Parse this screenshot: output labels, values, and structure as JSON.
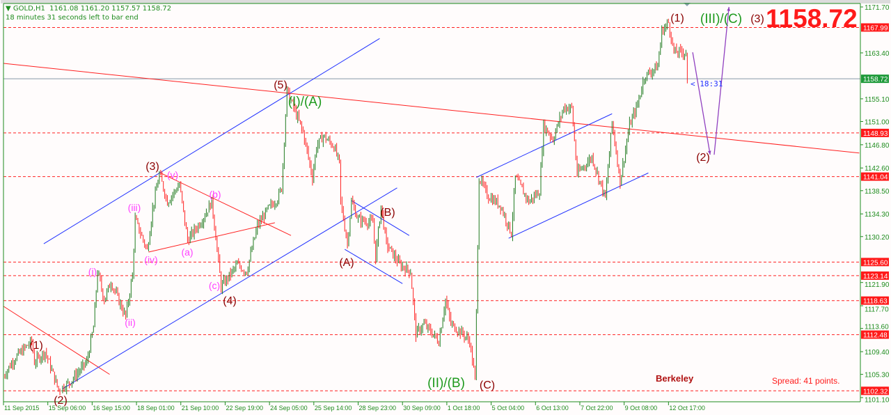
{
  "header": {
    "symbol_line": "GOLD,H1  1161.08 1161.20 1157.57 1158.72",
    "timer_line": "18 minutes 31 seconds left to bar end"
  },
  "overlay": {
    "big_price": "1158.72",
    "bar_timer": "< 18:31",
    "brand": "Berkeley",
    "spread": "Spread: 41 points."
  },
  "colors": {
    "background": "#fffcfc",
    "axis": "#1e8c1e",
    "bull_bar": "#1e7a1e",
    "bear_bar": "#ff2020",
    "level_line": "#ff2020",
    "channel_line": "#2030ff",
    "trend_line": "#ff2020",
    "projection_arrow": "#9040c0",
    "current_price_line": "#8898a8"
  },
  "wave_labels": [
    {
      "text": "(1)",
      "style": "dr"
    },
    {
      "text": "(2)",
      "style": "dr"
    },
    {
      "text": "(i)",
      "style": "mg"
    },
    {
      "text": "(ii)",
      "style": "mg"
    },
    {
      "text": "(iii)",
      "style": "mg"
    },
    {
      "text": "(iv)",
      "style": "mg"
    },
    {
      "text": "(v)",
      "style": "mg"
    },
    {
      "text": "(3)",
      "style": "dr"
    },
    {
      "text": "(a)",
      "style": "mg"
    },
    {
      "text": "(b)",
      "style": "mg"
    },
    {
      "text": "(c)",
      "style": "mg"
    },
    {
      "text": "(4)",
      "style": "dr"
    },
    {
      "text": "(5)",
      "style": "dr"
    },
    {
      "text": "(I)/(A)",
      "style": "gr"
    },
    {
      "text": "(A)",
      "style": "dr"
    },
    {
      "text": "(B)",
      "style": "dr"
    },
    {
      "text": "(II)/(B)",
      "style": "gr"
    },
    {
      "text": "(C)",
      "style": "dr"
    },
    {
      "text": "(1)",
      "style": "dr"
    },
    {
      "text": "(III)/(C)",
      "style": "gr"
    },
    {
      "text": "(3)",
      "style": "dr"
    },
    {
      "text": "(2)",
      "style": "dr"
    }
  ],
  "chart_data": {
    "type": "bar",
    "title": "GOLD,H1",
    "timeframe": "H1",
    "ohlc_last": {
      "open": 1161.08,
      "high": 1161.2,
      "low": 1157.57,
      "close": 1158.72
    },
    "ylim": [
      1101.1,
      1171.7
    ],
    "y_ticks": [
      "1171.70",
      "1163.40",
      "1155.10",
      "1151.00",
      "1146.80",
      "1142.60",
      "1138.50",
      "1134.30",
      "1130.20",
      "1121.90",
      "1117.70",
      "1113.60",
      "1109.40",
      "1105.30",
      "1101.10"
    ],
    "x_ticks": [
      "11 Sep 2015",
      "15 Sep 06:00",
      "16 Sep 15:00",
      "18 Sep 01:00",
      "21 Sep 10:00",
      "22 Sep 19:00",
      "24 Sep 05:00",
      "25 Sep 14:00",
      "28 Sep 23:00",
      "30 Sep 09:00",
      "1 Oct 18:00",
      "5 Oct 04:00",
      "6 Oct 13:00",
      "7 Oct 22:00",
      "9 Oct 08:00",
      "12 Oct 17:00"
    ],
    "x_tick_interval_bars": 33,
    "price_pivots": [
      [
        0,
        1105.0
      ],
      [
        8,
        1108.1
      ],
      [
        21,
        1111.3
      ],
      [
        23,
        1107.5
      ],
      [
        31,
        1109.4
      ],
      [
        41,
        1102.5
      ],
      [
        49,
        1103.8
      ],
      [
        62,
        1107.5
      ],
      [
        67,
        1113.8
      ],
      [
        70,
        1123.9
      ],
      [
        75,
        1118.8
      ],
      [
        80,
        1122.0
      ],
      [
        91,
        1115.7
      ],
      [
        96,
        1123.2
      ],
      [
        98,
        1133.3
      ],
      [
        107,
        1127.7
      ],
      [
        111,
        1135.2
      ],
      [
        116,
        1141.5
      ],
      [
        122,
        1136.5
      ],
      [
        131,
        1139.6
      ],
      [
        137,
        1129.5
      ],
      [
        148,
        1133.3
      ],
      [
        155,
        1136.5
      ],
      [
        158,
        1130.2
      ],
      [
        162,
        1121.1
      ],
      [
        174,
        1125.1
      ],
      [
        181,
        1123.9
      ],
      [
        189,
        1132.1
      ],
      [
        197,
        1135.2
      ],
      [
        204,
        1137.1
      ],
      [
        207,
        1139.0
      ],
      [
        211,
        1156.6
      ],
      [
        215,
        1154.1
      ],
      [
        223,
        1149.1
      ],
      [
        230,
        1140.9
      ],
      [
        233,
        1146.5
      ],
      [
        238,
        1148.4
      ],
      [
        246,
        1146.5
      ],
      [
        250,
        1143.4
      ],
      [
        251,
        1136.5
      ],
      [
        256,
        1128.9
      ],
      [
        259,
        1136.5
      ],
      [
        264,
        1133.3
      ],
      [
        275,
        1132.7
      ],
      [
        277,
        1126.4
      ],
      [
        281,
        1135.8
      ],
      [
        285,
        1128.9
      ],
      [
        295,
        1125.1
      ],
      [
        303,
        1123.9
      ],
      [
        307,
        1112.6
      ],
      [
        313,
        1114.4
      ],
      [
        324,
        1111.3
      ],
      [
        329,
        1118.8
      ],
      [
        333,
        1114.4
      ],
      [
        342,
        1112.6
      ],
      [
        347,
        1111.3
      ],
      [
        351,
        1104.4
      ],
      [
        354,
        1140.9
      ],
      [
        360,
        1137.7
      ],
      [
        370,
        1135.8
      ],
      [
        378,
        1130.8
      ],
      [
        381,
        1140.9
      ],
      [
        391,
        1136.5
      ],
      [
        399,
        1138.4
      ],
      [
        402,
        1150.3
      ],
      [
        409,
        1147.8
      ],
      [
        417,
        1153.5
      ],
      [
        423,
        1153.5
      ],
      [
        427,
        1141.5
      ],
      [
        438,
        1144.6
      ],
      [
        448,
        1137.1
      ],
      [
        453,
        1150.9
      ],
      [
        459,
        1140.2
      ],
      [
        466,
        1150.3
      ],
      [
        472,
        1154.1
      ],
      [
        477,
        1159.1
      ],
      [
        487,
        1161.0
      ],
      [
        490,
        1167.3
      ],
      [
        495,
        1168.9
      ],
      [
        499,
        1163.5
      ],
      [
        508,
        1163.5
      ],
      [
        509,
        1158.72
      ]
    ],
    "current_price": 1158.72,
    "horizontal_levels": [
      "1167.99",
      "1148.93",
      "1141.04",
      "1125.60",
      "1123.14",
      "1118.63",
      "1112.48",
      "1102.32"
    ],
    "trend_lines": [
      {
        "kind": "trend",
        "from": [
          0,
          1161.5
        ],
        "to": [
          637,
          1145.3
        ]
      },
      {
        "kind": "trend",
        "from": [
          0,
          1117.6
        ],
        "to": [
          79,
          1105.3
        ]
      },
      {
        "kind": "trend",
        "from": [
          116,
          1141.8
        ],
        "to": [
          214,
          1130.4
        ]
      },
      {
        "kind": "trend",
        "from": [
          108,
          1127.4
        ],
        "to": [
          202,
          1132.7
        ]
      },
      {
        "kind": "channel",
        "from": [
          30,
          1128.9
        ],
        "to": [
          280,
          1166.0
        ]
      },
      {
        "kind": "channel",
        "from": [
          44,
          1102.7
        ],
        "to": [
          293,
          1139.0
        ]
      },
      {
        "kind": "channel",
        "from": [
          259,
          1136.7
        ],
        "to": [
          302,
          1130.4
        ]
      },
      {
        "kind": "channel",
        "from": [
          254,
          1127.9
        ],
        "to": [
          297,
          1121.7
        ]
      },
      {
        "kind": "channel",
        "from": [
          352,
          1140.9
        ],
        "to": [
          453,
          1152.4
        ]
      },
      {
        "kind": "channel",
        "from": [
          376,
          1129.9
        ],
        "to": [
          480,
          1141.7
        ]
      }
    ],
    "projection_arrows": [
      {
        "from": [
          513,
          1163.5
        ],
        "to": [
          526,
          1145.0
        ]
      },
      {
        "from": [
          529,
          1145.0
        ],
        "to": [
          540,
          1171.7
        ]
      }
    ],
    "grid": false
  }
}
